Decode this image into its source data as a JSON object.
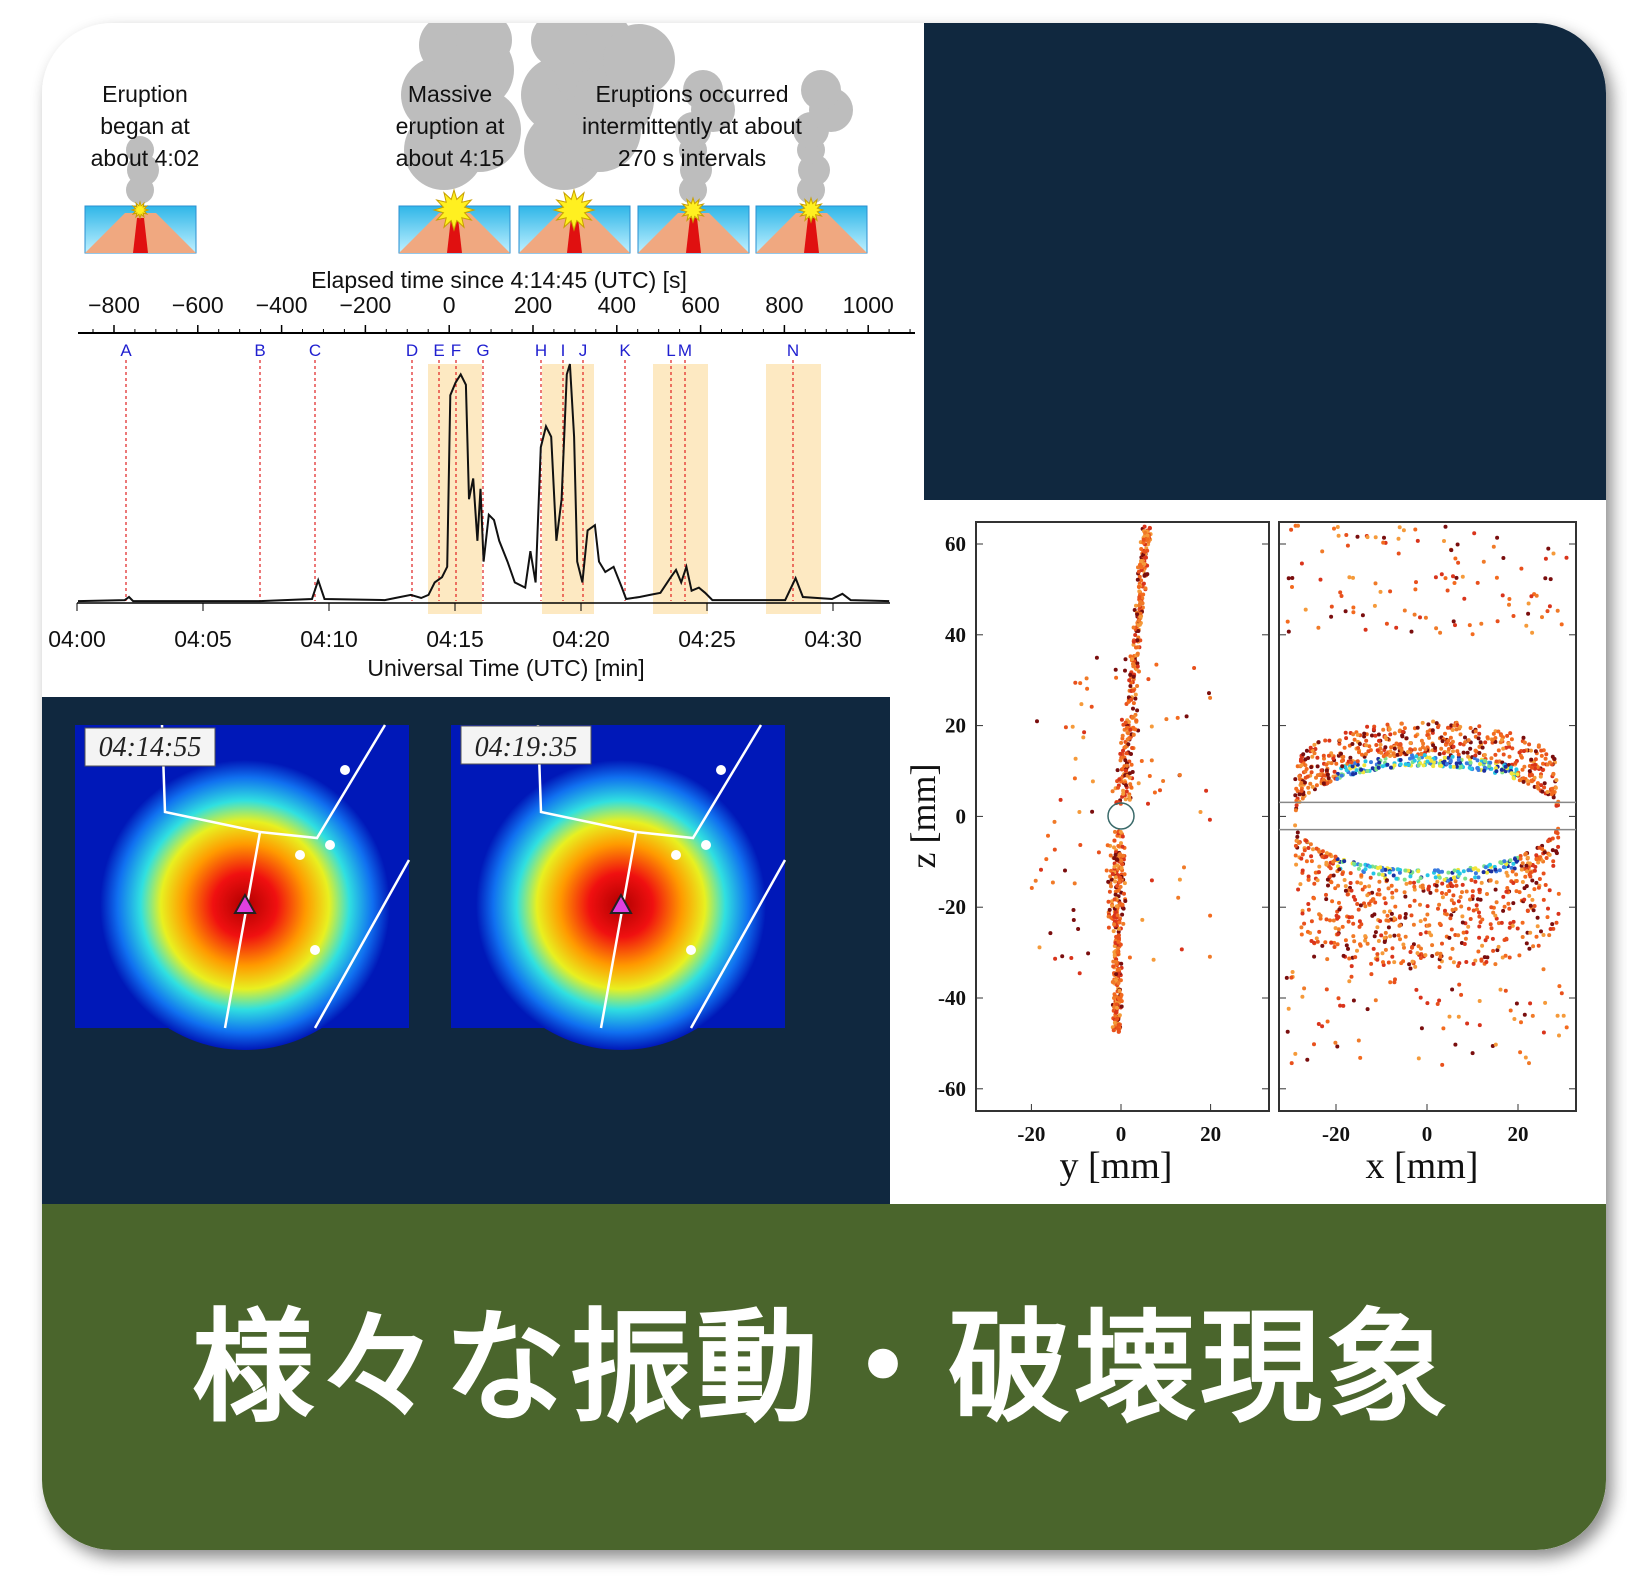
{
  "timeline": {
    "annotations": [
      [
        "Eruption",
        "began at",
        "about 4:02"
      ],
      [
        "Massive",
        "eruption at",
        "about 4:15"
      ],
      [
        "Eruptions occurred",
        "intermittently at about",
        "270 s intervals"
      ]
    ],
    "top_axis_label": "Elapsed time since 4:14:45 (UTC) [s]",
    "top_ticks": [
      "−800",
      "−600",
      "−400",
      "−200",
      "0",
      "200",
      "400",
      "600",
      "800",
      "1000"
    ],
    "event_labels": [
      "A",
      "B",
      "C",
      "D",
      "E",
      "F",
      "G",
      "H",
      "I",
      "J",
      "K",
      "L",
      "M",
      "N"
    ],
    "bottom_ticks": [
      "04:00",
      "04:05",
      "04:10",
      "04:15",
      "04:20",
      "04:25",
      "04:30"
    ],
    "bottom_axis_label": "Universal Time (UTC) [min]"
  },
  "maps": {
    "timestamps": [
      "04:14:55",
      "04:19:35"
    ]
  },
  "scatter": {
    "z_label": "z [mm]",
    "z_ticks": [
      "60",
      "40",
      "20",
      "0",
      "-20",
      "-40",
      "-60"
    ],
    "left_x_ticks": [
      "-20",
      "0",
      "20"
    ],
    "left_x_label": "y [mm]",
    "right_x_ticks": [
      "-20",
      "0",
      "20"
    ],
    "right_x_label": "x [mm]"
  },
  "title": "様々な振動・破壊現象"
}
